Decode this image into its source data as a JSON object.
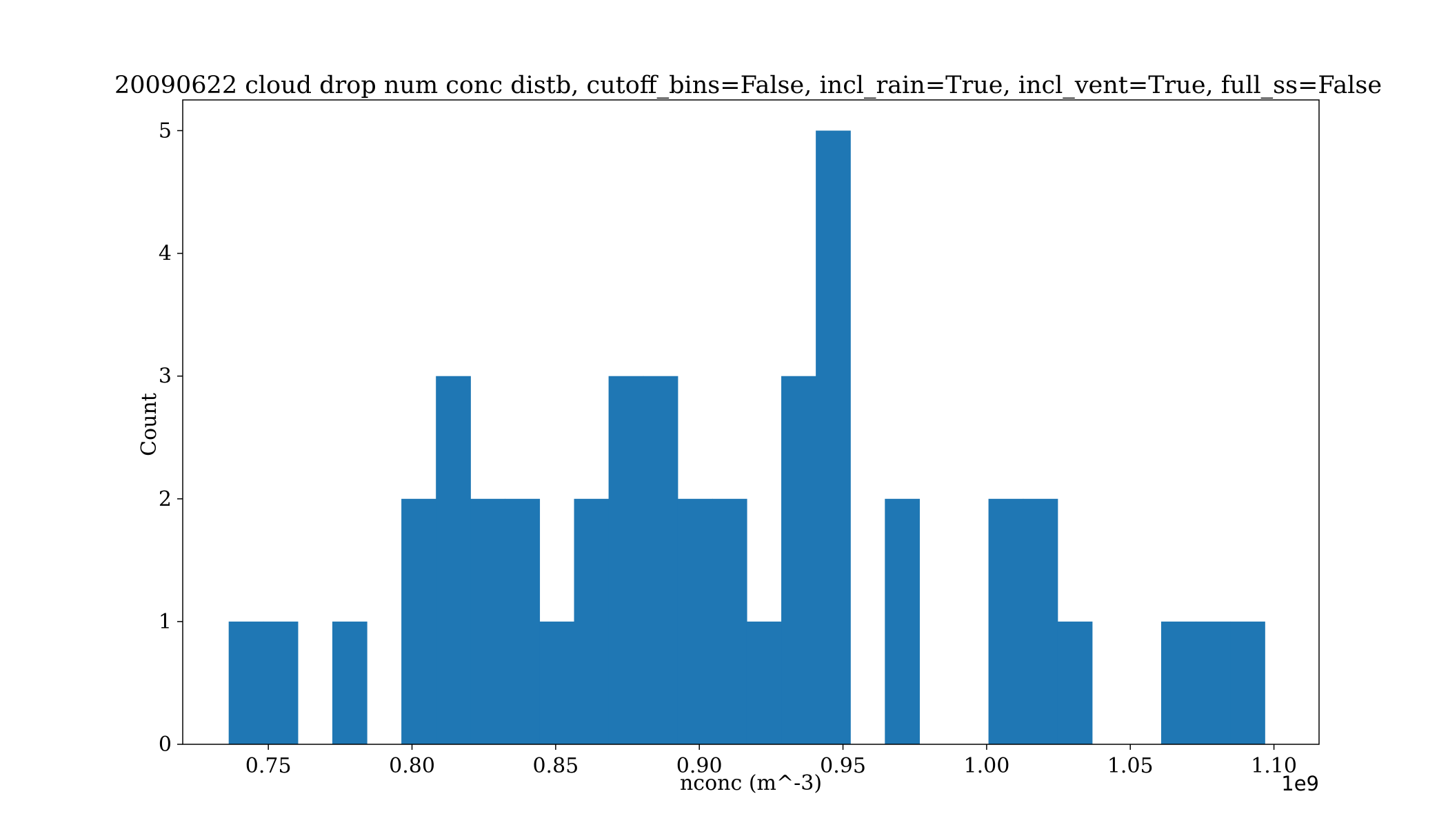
{
  "chart_data": {
    "type": "bar",
    "title": "20090622 cloud drop num conc distb, cutoff_bins=False, incl_rain=True, incl_vent=True, full_ss=False",
    "xlabel": "nconc (m^-3)",
    "ylabel": "Count",
    "x_offset_label": "1e9",
    "xlim": [
      0.7202,
      1.1157
    ],
    "ylim": [
      0,
      5.25
    ],
    "x_ticks": [
      0.75,
      0.8,
      0.85,
      0.9,
      0.95,
      1.0,
      1.05,
      1.1
    ],
    "x_tick_labels": [
      "0.75",
      "0.80",
      "0.85",
      "0.90",
      "0.95",
      "1.00",
      "1.05",
      "1.10"
    ],
    "y_ticks": [
      0,
      1,
      2,
      3,
      4,
      5
    ],
    "y_tick_labels": [
      "0",
      "1",
      "2",
      "3",
      "4",
      "5"
    ],
    "bin_start": 0.7362,
    "bin_width": 0.01202,
    "counts": [
      1,
      1,
      0,
      1,
      0,
      2,
      3,
      2,
      2,
      1,
      2,
      3,
      3,
      2,
      2,
      1,
      3,
      5,
      0,
      2,
      0,
      0,
      2,
      2,
      1,
      0,
      0,
      1,
      1,
      1
    ],
    "bar_color": "#1f77b4",
    "grid": false,
    "legend": false
  }
}
